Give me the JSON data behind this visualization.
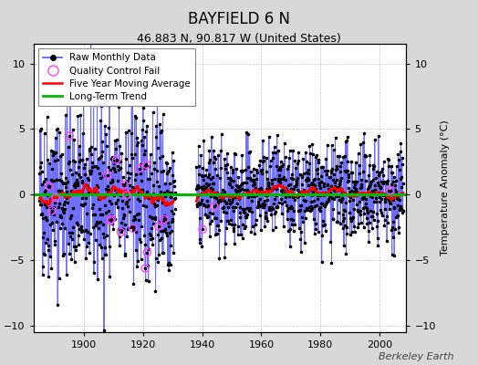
{
  "title": "BAYFIELD 6 N",
  "subtitle": "46.883 N, 90.817 W (United States)",
  "ylabel": "Temperature Anomaly (°C)",
  "watermark": "Berkeley Earth",
  "ylim": [
    -10.5,
    11.5
  ],
  "xlim": [
    1883,
    2009
  ],
  "xticks": [
    1900,
    1920,
    1940,
    1960,
    1980,
    2000
  ],
  "yticks": [
    -10,
    -5,
    0,
    5,
    10
  ],
  "bg_color": "#d8d8d8",
  "plot_bg_color": "#ffffff",
  "raw_line_color": "#5555ff",
  "raw_dot_color": "#000000",
  "qc_fail_color": "#ff44ff",
  "moving_avg_color": "#ff0000",
  "trend_color": "#00bb00",
  "trend_y": 0.0,
  "start_year": 1885,
  "end_year": 2007,
  "gap_start": 1930,
  "gap_end": 1938,
  "seed": 42,
  "early_noise": 3.2,
  "late_noise": 1.8
}
